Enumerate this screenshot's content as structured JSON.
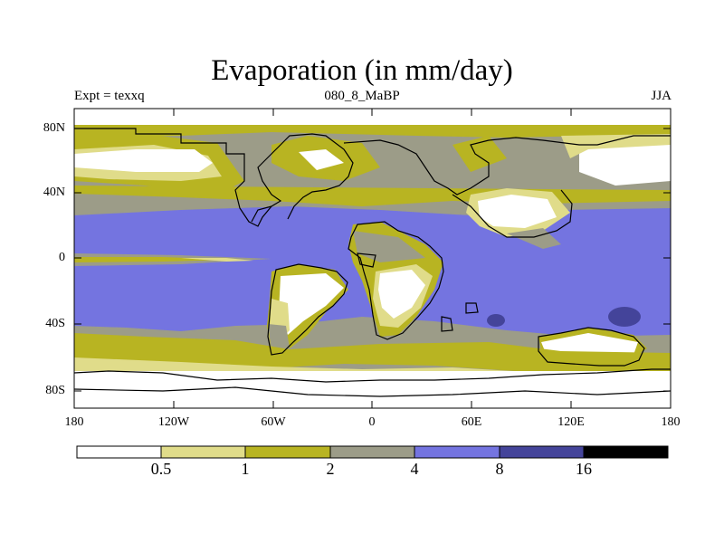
{
  "header": {
    "title": "Evaporation (in mm/day)",
    "left_label": "Expt = texxq",
    "center_label": "080_8_MaBP",
    "right_label": "JJA"
  },
  "map": {
    "lat_labels": [
      "80N",
      "40N",
      "0",
      "40S",
      "80S"
    ],
    "lon_labels": [
      "180",
      "120W",
      "60W",
      "0",
      "60E",
      "120E",
      "180"
    ]
  },
  "legend": {
    "boundaries": [
      "0.5",
      "1",
      "2",
      "4",
      "8",
      "16"
    ],
    "colors": [
      "#ffffff",
      "#e0dc8a",
      "#b8b422",
      "#9c9c88",
      "#7474e0",
      "#44449a",
      "#000000"
    ]
  }
}
